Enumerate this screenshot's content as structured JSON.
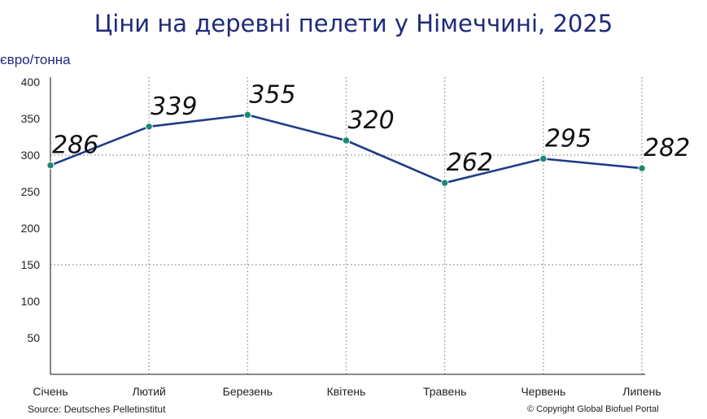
{
  "chart_data": {
    "type": "line",
    "title": "Ціни на деревні пелети у Німеччині, 2025",
    "ylabel": "євро/тонна",
    "xlabel": "",
    "categories": [
      "Січень",
      "Лютий",
      "Березень",
      "Квітень",
      "Травень",
      "Червень",
      "Липень"
    ],
    "values": [
      286,
      339,
      355,
      320,
      262,
      295,
      282
    ],
    "data_labels": [
      "286",
      "339",
      "355",
      "320",
      "262",
      "295",
      "282"
    ],
    "ylim": [
      0,
      400
    ],
    "yticks": [
      "50",
      "100",
      "150",
      "200",
      "250",
      "300",
      "350",
      "400"
    ],
    "grid": true,
    "line_color": "#1f3c88",
    "marker_color": "#1a8a74"
  },
  "footer": {
    "source": "Source: Deutsches Pelletinstitut",
    "copyright": "© Copyright Global Biofuel Portal"
  }
}
